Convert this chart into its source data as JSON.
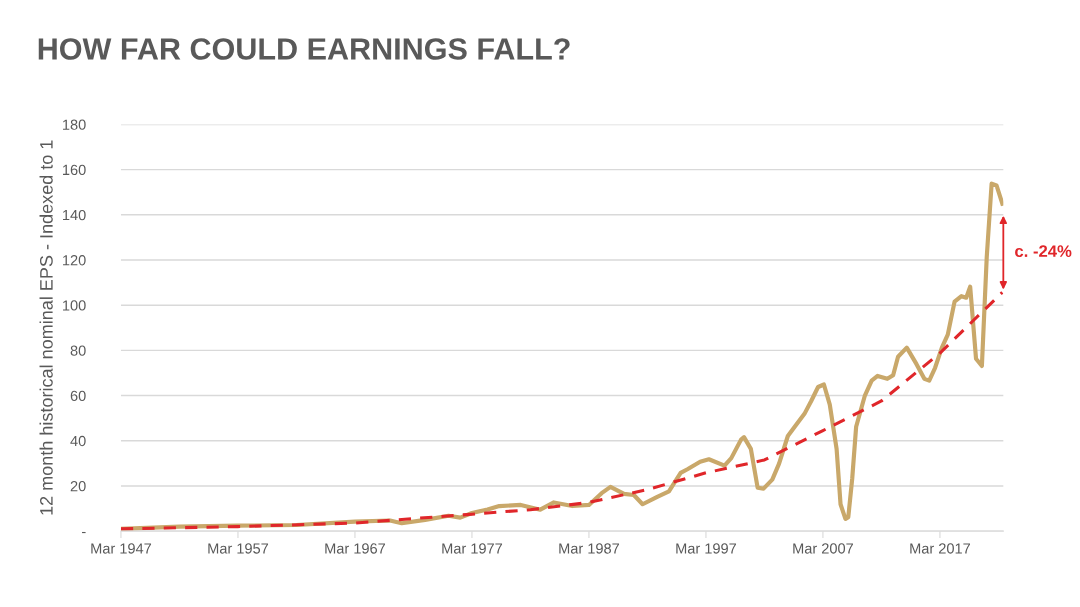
{
  "chart_data": {
    "type": "line",
    "title": "HOW FAR COULD EARNINGS FALL?",
    "ylabel": "12 month historical nominal EPS - Indexed to 1",
    "ylim": [
      0,
      180
    ],
    "yticks": [
      {
        "value": 0,
        "label": "-"
      },
      20,
      40,
      60,
      80,
      100,
      120,
      140,
      160,
      180
    ],
    "xlim": [
      "1947-03",
      "2022-08"
    ],
    "xticks": [
      {
        "value": "1947-03",
        "label": "Mar 1947"
      },
      {
        "value": "1957-03",
        "label": "Mar 1957"
      },
      {
        "value": "1967-03",
        "label": "Mar 1967"
      },
      {
        "value": "1977-03",
        "label": "Mar 1977"
      },
      {
        "value": "1987-03",
        "label": "Mar 1987"
      },
      {
        "value": "1997-03",
        "label": "Mar 1997"
      },
      {
        "value": "2007-03",
        "label": "Mar 2007"
      },
      {
        "value": "2017-03",
        "label": "Mar 2017"
      }
    ],
    "grid": "y",
    "legend": false,
    "marker": "none",
    "series": [
      {
        "color": "#c9a86a",
        "line_style": "solid",
        "x": [
          "1947-03",
          "1952-03",
          "1957-03",
          "1962-03",
          "1967-03",
          "1970-03",
          "1971-03",
          "1973-03",
          "1975-03",
          "1976-03",
          "1977-03",
          "1978-07",
          "1979-07",
          "1981-05",
          "1983-01",
          "1984-03",
          "1985-10",
          "1987-03",
          "1988-04",
          "1989-01",
          "1990-03",
          "1991-01",
          "1991-10",
          "1993-01",
          "1994-01",
          "1995-01",
          "1995-08",
          "1996-09",
          "1997-06",
          "1998-10",
          "1999-05",
          "2000-03",
          "2000-06",
          "2001-01",
          "2001-08",
          "2002-02",
          "2002-11",
          "2003-06",
          "2004-03",
          "2004-10",
          "2005-08",
          "2006-03",
          "2006-10",
          "2007-04",
          "2007-10",
          "2008-05",
          "2008-09",
          "2009-02",
          "2009-05",
          "2009-09",
          "2010-01",
          "2010-10",
          "2011-05",
          "2011-11",
          "2012-09",
          "2013-03",
          "2013-08",
          "2014-05",
          "2015-03",
          "2015-11",
          "2016-04",
          "2016-10",
          "2017-05",
          "2017-11",
          "2018-06",
          "2019-01",
          "2019-06",
          "2019-10",
          "2020-04",
          "2020-10",
          "2021-03",
          "2021-08",
          "2022-01",
          "2022-07"
        ],
        "values": [
          1.0,
          2.0,
          2.4,
          2.7,
          4.2,
          4.7,
          3.5,
          5.0,
          6.8,
          6.0,
          8.0,
          9.6,
          11.1,
          11.6,
          9.5,
          12.7,
          11.1,
          11.6,
          16.8,
          19.6,
          16.5,
          16.0,
          11.9,
          15.2,
          17.6,
          25.8,
          27.4,
          30.7,
          31.8,
          29.0,
          32.3,
          40.5,
          41.6,
          36.4,
          19.2,
          18.8,
          22.8,
          29.9,
          42.1,
          46.2,
          51.9,
          57.6,
          63.8,
          64.9,
          56.0,
          36.4,
          11.9,
          5.4,
          6.2,
          23.3,
          46.2,
          60.0,
          66.6,
          68.7,
          67.4,
          69.0,
          77.2,
          81.2,
          73.9,
          67.4,
          66.6,
          72.3,
          81.2,
          87.0,
          101.6,
          104.0,
          103.3,
          108.2,
          76.3,
          73.1,
          121.2,
          153.8,
          153.0,
          144.9
        ]
      },
      {
        "color": "#e0262a",
        "line_style": "dashed",
        "x": [
          "1947-03",
          "1957-03",
          "1967-03",
          "1977-03",
          "1982-03",
          "1987-03",
          "1992-03",
          "1997-03",
          "2002-03",
          "2007-03",
          "2012-03",
          "2017-03",
          "2022-07"
        ],
        "values": [
          1.0,
          2.0,
          3.6,
          7.5,
          9.5,
          12.7,
          18.4,
          25.8,
          31.5,
          44.5,
          57.6,
          78.8,
          105.7
        ]
      }
    ],
    "annotations": [
      "c. -24%"
    ]
  }
}
